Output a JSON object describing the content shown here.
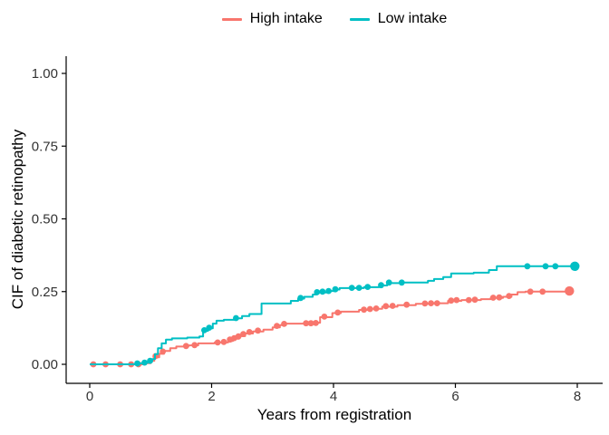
{
  "chart_data": {
    "type": "line",
    "subtype": "step-cumulative-incidence",
    "title": "",
    "xlabel": "Years from registration",
    "ylabel": "CIF of diabetic retinopathy",
    "xlim": [
      0,
      8
    ],
    "ylim": [
      0,
      1
    ],
    "grid": false,
    "axis_color": "#000000",
    "tick_label_color": "#333333",
    "background": "#ffffff",
    "xticks": {
      "values": [
        0,
        2,
        4,
        6,
        8
      ],
      "labels": [
        "0",
        "2",
        "4",
        "6",
        "8"
      ]
    },
    "yticks": {
      "values": [
        0,
        0.25,
        0.5,
        0.75,
        1
      ],
      "labels": [
        "0.00",
        "0.25",
        "0.50",
        "0.75",
        "1.00"
      ]
    },
    "legend": {
      "position": "top-center"
    },
    "series": [
      {
        "name": "High intake",
        "color": "#F8766D",
        "steps": [
          [
            0,
            0
          ],
          [
            0.92,
            0.004
          ],
          [
            1.0,
            0.012
          ],
          [
            1.06,
            0.024
          ],
          [
            1.14,
            0.036
          ],
          [
            1.22,
            0.046
          ],
          [
            1.32,
            0.055
          ],
          [
            1.42,
            0.061
          ],
          [
            1.62,
            0.065
          ],
          [
            1.78,
            0.072
          ],
          [
            2.05,
            0.075
          ],
          [
            2.27,
            0.08
          ],
          [
            2.35,
            0.088
          ],
          [
            2.45,
            0.097
          ],
          [
            2.55,
            0.106
          ],
          [
            2.68,
            0.113
          ],
          [
            2.85,
            0.119
          ],
          [
            3.0,
            0.127
          ],
          [
            3.12,
            0.135
          ],
          [
            3.22,
            0.14
          ],
          [
            3.6,
            0.143
          ],
          [
            3.78,
            0.162
          ],
          [
            3.98,
            0.176
          ],
          [
            4.12,
            0.181
          ],
          [
            4.42,
            0.187
          ],
          [
            4.62,
            0.191
          ],
          [
            4.8,
            0.198
          ],
          [
            5.05,
            0.203
          ],
          [
            5.35,
            0.208
          ],
          [
            5.58,
            0.21
          ],
          [
            5.88,
            0.218
          ],
          [
            6.1,
            0.221
          ],
          [
            6.42,
            0.224
          ],
          [
            6.58,
            0.228
          ],
          [
            6.78,
            0.232
          ],
          [
            6.92,
            0.24
          ],
          [
            7.02,
            0.248
          ],
          [
            7.15,
            0.25
          ],
          [
            7.87,
            0.252
          ]
        ],
        "censor_marks": [
          [
            0.06,
            0
          ],
          [
            0.26,
            0
          ],
          [
            0.5,
            0
          ],
          [
            0.68,
            0
          ],
          [
            0.8,
            0
          ],
          [
            1.08,
            0.028
          ],
          [
            1.2,
            0.044
          ],
          [
            1.58,
            0.063
          ],
          [
            1.72,
            0.066
          ],
          [
            2.1,
            0.075
          ],
          [
            2.2,
            0.077
          ],
          [
            2.3,
            0.085
          ],
          [
            2.37,
            0.09
          ],
          [
            2.44,
            0.096
          ],
          [
            2.52,
            0.104
          ],
          [
            2.62,
            0.111
          ],
          [
            2.76,
            0.116
          ],
          [
            3.07,
            0.132
          ],
          [
            3.19,
            0.139
          ],
          [
            3.55,
            0.141
          ],
          [
            3.63,
            0.141
          ],
          [
            3.71,
            0.142
          ],
          [
            3.85,
            0.164
          ],
          [
            4.07,
            0.178
          ],
          [
            4.5,
            0.188
          ],
          [
            4.6,
            0.19
          ],
          [
            4.7,
            0.192
          ],
          [
            4.86,
            0.2
          ],
          [
            4.97,
            0.201
          ],
          [
            5.2,
            0.205
          ],
          [
            5.5,
            0.209
          ],
          [
            5.6,
            0.21
          ],
          [
            5.7,
            0.21
          ],
          [
            5.93,
            0.219
          ],
          [
            6.02,
            0.221
          ],
          [
            6.22,
            0.221
          ],
          [
            6.32,
            0.222
          ],
          [
            6.62,
            0.229
          ],
          [
            6.72,
            0.23
          ],
          [
            6.88,
            0.235
          ],
          [
            7.23,
            0.25
          ],
          [
            7.43,
            0.25
          ]
        ],
        "end_point": [
          7.87,
          0.252
        ]
      },
      {
        "name": "Low intake",
        "color": "#00BFC4",
        "steps": [
          [
            0,
            0
          ],
          [
            0.75,
            0.003
          ],
          [
            0.88,
            0.006
          ],
          [
            0.97,
            0.01
          ],
          [
            1.02,
            0.018
          ],
          [
            1.07,
            0.035
          ],
          [
            1.12,
            0.055
          ],
          [
            1.18,
            0.072
          ],
          [
            1.25,
            0.085
          ],
          [
            1.35,
            0.089
          ],
          [
            1.6,
            0.092
          ],
          [
            1.8,
            0.096
          ],
          [
            1.86,
            0.115
          ],
          [
            1.94,
            0.124
          ],
          [
            2.02,
            0.14
          ],
          [
            2.08,
            0.15
          ],
          [
            2.2,
            0.153
          ],
          [
            2.38,
            0.158
          ],
          [
            2.5,
            0.166
          ],
          [
            2.62,
            0.173
          ],
          [
            2.82,
            0.209
          ],
          [
            3.3,
            0.218
          ],
          [
            3.42,
            0.226
          ],
          [
            3.52,
            0.232
          ],
          [
            3.66,
            0.24
          ],
          [
            3.73,
            0.247
          ],
          [
            3.9,
            0.252
          ],
          [
            4.02,
            0.257
          ],
          [
            4.1,
            0.262
          ],
          [
            4.5,
            0.265
          ],
          [
            4.75,
            0.271
          ],
          [
            4.88,
            0.279
          ],
          [
            5.1,
            0.281
          ],
          [
            5.55,
            0.287
          ],
          [
            5.65,
            0.293
          ],
          [
            5.8,
            0.3
          ],
          [
            5.93,
            0.312
          ],
          [
            6.3,
            0.315
          ],
          [
            6.55,
            0.324
          ],
          [
            6.68,
            0.337
          ],
          [
            7.96,
            0.337
          ]
        ],
        "censor_marks": [
          [
            0.78,
            0.003
          ],
          [
            0.9,
            0.006
          ],
          [
            0.99,
            0.012
          ],
          [
            1.88,
            0.117
          ],
          [
            1.96,
            0.126
          ],
          [
            2.4,
            0.159
          ],
          [
            3.46,
            0.228
          ],
          [
            3.73,
            0.248
          ],
          [
            3.82,
            0.25
          ],
          [
            3.92,
            0.252
          ],
          [
            4.03,
            0.258
          ],
          [
            4.3,
            0.263
          ],
          [
            4.42,
            0.263
          ],
          [
            4.56,
            0.266
          ],
          [
            4.78,
            0.272
          ],
          [
            4.91,
            0.281
          ],
          [
            5.12,
            0.281
          ],
          [
            7.18,
            0.337
          ],
          [
            7.48,
            0.337
          ],
          [
            7.64,
            0.337
          ]
        ],
        "end_point": [
          7.96,
          0.337
        ]
      }
    ]
  }
}
